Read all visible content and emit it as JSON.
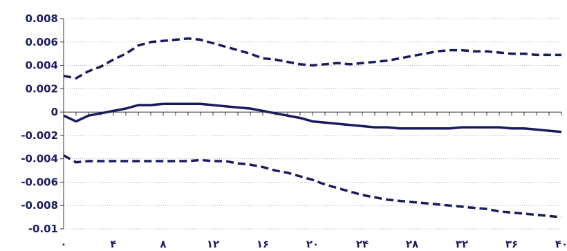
{
  "chart_data": {
    "type": "line",
    "title": "",
    "xlabel": "",
    "ylabel": "",
    "xlim": [
      0,
      40
    ],
    "ylim": [
      -0.01,
      0.008
    ],
    "grid": {
      "horizontal": true,
      "vertical": false
    },
    "y_ticks": [
      {
        "value": 0.008,
        "label": "0.008"
      },
      {
        "value": 0.006,
        "label": "0.006"
      },
      {
        "value": 0.004,
        "label": "0.004"
      },
      {
        "value": 0.002,
        "label": "0.002"
      },
      {
        "value": 0,
        "label": "0"
      },
      {
        "value": -0.002,
        "label": "-0.002"
      },
      {
        "value": -0.004,
        "label": "-0.004"
      },
      {
        "value": -0.006,
        "label": "-0.006"
      },
      {
        "value": -0.008,
        "label": "-0.008"
      },
      {
        "value": -0.01,
        "label": "-0.01"
      }
    ],
    "x_ticks": [
      {
        "value": 0,
        "label": "۰"
      },
      {
        "value": 4,
        "label": "۴"
      },
      {
        "value": 8,
        "label": "۸"
      },
      {
        "value": 12,
        "label": "۱۲"
      },
      {
        "value": 16,
        "label": "۱۶"
      },
      {
        "value": 20,
        "label": "۲۰"
      },
      {
        "value": 24,
        "label": "۲۴"
      },
      {
        "value": 28,
        "label": "۲۸"
      },
      {
        "value": 32,
        "label": "۳۲"
      },
      {
        "value": 36,
        "label": "۳۶"
      },
      {
        "value": 40,
        "label": "۴۰"
      }
    ],
    "line_color": "#1a1a5e",
    "x": [
      0,
      1,
      2,
      3,
      4,
      5,
      6,
      7,
      8,
      9,
      10,
      11,
      12,
      13,
      14,
      15,
      16,
      17,
      18,
      19,
      20,
      21,
      22,
      23,
      24,
      25,
      26,
      27,
      28,
      29,
      30,
      31,
      32,
      33,
      34,
      35,
      36,
      37,
      38,
      39,
      40
    ],
    "series": [
      {
        "style": "dashed",
        "values": [
          0.0031,
          0.0029,
          0.0035,
          0.0039,
          0.0045,
          0.005,
          0.0057,
          0.006,
          0.0061,
          0.0062,
          0.0063,
          0.0062,
          0.0059,
          0.0056,
          0.0053,
          0.005,
          0.0046,
          0.0045,
          0.0043,
          0.0041,
          0.004,
          0.0041,
          0.0042,
          0.0041,
          0.0042,
          0.0043,
          0.0044,
          0.0046,
          0.0048,
          0.005,
          0.0052,
          0.0053,
          0.0053,
          0.0052,
          0.0052,
          0.0051,
          0.005,
          0.005,
          0.0049,
          0.0049,
          0.0049
        ]
      },
      {
        "style": "solid",
        "values": [
          -0.0003,
          -0.0008,
          -0.0003,
          -0.0001,
          0.0001,
          0.0003,
          0.0006,
          0.0006,
          0.0007,
          0.0007,
          0.0007,
          0.0007,
          0.0006,
          0.0005,
          0.0004,
          0.0003,
          0.0001,
          -0.0001,
          -0.0003,
          -0.0005,
          -0.0008,
          -0.0009,
          -0.001,
          -0.0011,
          -0.0012,
          -0.0013,
          -0.0013,
          -0.0014,
          -0.0014,
          -0.0014,
          -0.0014,
          -0.0014,
          -0.0013,
          -0.0013,
          -0.0013,
          -0.0013,
          -0.0014,
          -0.0014,
          -0.0015,
          -0.0016,
          -0.0017
        ]
      },
      {
        "style": "dashed",
        "values": [
          -0.0037,
          -0.0043,
          -0.0042,
          -0.0042,
          -0.0042,
          -0.0042,
          -0.0042,
          -0.0042,
          -0.0042,
          -0.0042,
          -0.0042,
          -0.0041,
          -0.0042,
          -0.0042,
          -0.0044,
          -0.0045,
          -0.0047,
          -0.005,
          -0.0052,
          -0.0055,
          -0.0058,
          -0.0062,
          -0.0065,
          -0.0068,
          -0.0071,
          -0.0073,
          -0.0075,
          -0.0076,
          -0.0077,
          -0.0078,
          -0.0079,
          -0.008,
          -0.0081,
          -0.0082,
          -0.0083,
          -0.0085,
          -0.0086,
          -0.0087,
          -0.0088,
          -0.0089,
          -0.009
        ]
      }
    ]
  }
}
